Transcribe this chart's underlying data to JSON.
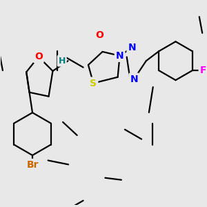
{
  "background_color": "#e8e8e8",
  "bond_color": "#000000",
  "bond_width": 1.6,
  "atom_colors": {
    "O": "#ff0000",
    "N": "#0000ff",
    "S": "#cccc00",
    "F": "#ff00ff",
    "Br": "#cc6600",
    "H_label": "#008080",
    "C": "#000000"
  },
  "font_size_atom": 10,
  "font_size_small": 9
}
